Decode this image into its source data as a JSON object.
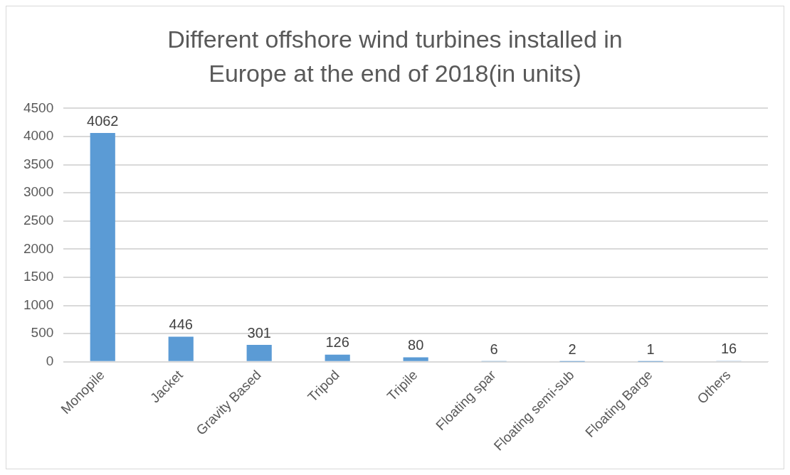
{
  "chart_data": {
    "type": "bar",
    "title": "Different offshore wind turbines installed in Europe at the end of 2018(in units)",
    "categories": [
      "Monopile",
      "Jacket",
      "Gravity Based",
      "Tripod",
      "Tripile",
      "Floating spar",
      "Floating semi-sub",
      "Floating Barge",
      "Others"
    ],
    "values": [
      4062,
      446,
      301,
      126,
      80,
      6,
      2,
      1,
      16
    ],
    "color": "#5b9bd5",
    "ylim": [
      0,
      4500
    ],
    "yticks": [
      0,
      500,
      1000,
      1500,
      2000,
      2500,
      3000,
      3500,
      4000,
      4500
    ],
    "grid": "y",
    "data_labels": true
  }
}
